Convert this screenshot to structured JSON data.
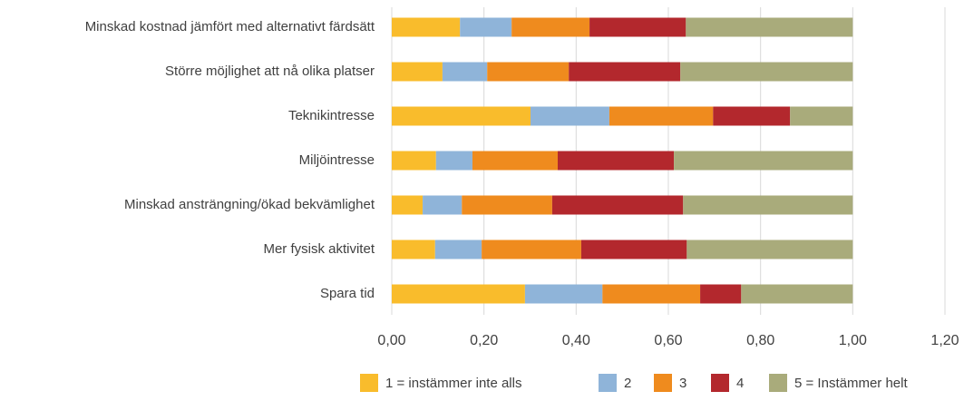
{
  "chart_data": {
    "type": "stacked-bar-horizontal",
    "categories": [
      "Minskad kostnad jämfört med alternativt färdsätt",
      "Större möjlighet att nå olika platser",
      "Teknikintresse",
      "Miljöintresse",
      "Minskad ansträngning/ökad bekvämlighet",
      "Mer fysisk aktivitet",
      "Spara tid"
    ],
    "series": [
      {
        "name": "1 = instämmer inte alls",
        "color": "#f9bc2c",
        "values": [
          0.148,
          0.11,
          0.301,
          0.096,
          0.067,
          0.094,
          0.289
        ]
      },
      {
        "name": "2",
        "color": "#8fb4d9",
        "values": [
          0.112,
          0.097,
          0.171,
          0.079,
          0.085,
          0.101,
          0.168
        ]
      },
      {
        "name": "3",
        "color": "#ef8b1e",
        "values": [
          0.169,
          0.177,
          0.225,
          0.185,
          0.196,
          0.216,
          0.212
        ]
      },
      {
        "name": "4",
        "color": "#b3282d",
        "values": [
          0.209,
          0.242,
          0.167,
          0.252,
          0.284,
          0.229,
          0.089
        ]
      },
      {
        "name": "5 = Instämmer helt",
        "color": "#a9ab7b",
        "values": [
          0.362,
          0.374,
          0.136,
          0.388,
          0.368,
          0.36,
          0.242
        ]
      }
    ],
    "xlim": [
      0,
      1.2
    ],
    "xticks": [
      {
        "value": 0,
        "label": "0,00"
      },
      {
        "value": 0.2,
        "label": "0,20"
      },
      {
        "value": 0.4,
        "label": "0,40"
      },
      {
        "value": 0.6,
        "label": "0,60"
      },
      {
        "value": 0.8,
        "label": "0,80"
      },
      {
        "value": 1,
        "label": "1,00"
      },
      {
        "value": 1.2,
        "label": "1,20"
      }
    ],
    "grid": true
  }
}
